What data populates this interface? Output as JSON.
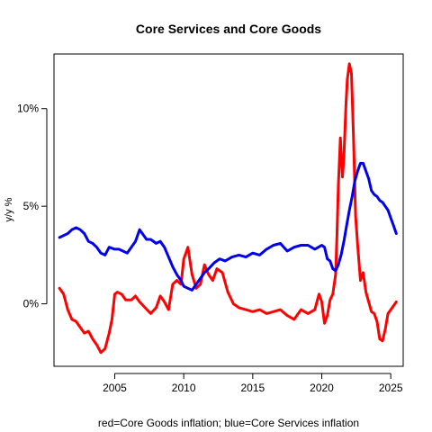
{
  "chart_data": {
    "type": "line",
    "title": "Core Services and Core Goods",
    "ylabel": "y/y %",
    "xlabel": "red=Core Goods inflation; blue=Core Services inflation",
    "xlim": [
      2000.6,
      2025.9
    ],
    "ylim": [
      -3.2,
      12.8
    ],
    "x_ticks": [
      2005,
      2010,
      2015,
      2020,
      2025
    ],
    "x_tick_labels": [
      "2005",
      "2010",
      "2015",
      "2020",
      "2025"
    ],
    "y_ticks": [
      0,
      5,
      10
    ],
    "y_tick_labels": [
      "0%",
      "5%",
      "10%"
    ],
    "grid": false,
    "legend": "none",
    "series": [
      {
        "color": "#ff0000",
        "x": [
          2001.0,
          2001.3,
          2001.6,
          2001.9,
          2002.2,
          2002.5,
          2002.8,
          2003.1,
          2003.4,
          2003.7,
          2004.0,
          2004.3,
          2004.6,
          2004.8,
          2005.0,
          2005.2,
          2005.5,
          2005.8,
          2006.2,
          2006.5,
          2006.8,
          2007.2,
          2007.6,
          2008.0,
          2008.3,
          2008.6,
          2008.9,
          2009.2,
          2009.5,
          2009.8,
          2010.0,
          2010.3,
          2010.6,
          2010.9,
          2011.2,
          2011.5,
          2011.8,
          2012.1,
          2012.4,
          2012.8,
          2013.2,
          2013.6,
          2014.0,
          2014.5,
          2015.0,
          2015.5,
          2016.0,
          2016.5,
          2017.0,
          2017.5,
          2018.0,
          2018.5,
          2019.0,
          2019.5,
          2019.8,
          2020.0,
          2020.2,
          2020.4,
          2020.6,
          2020.8,
          2021.0,
          2021.1,
          2021.2,
          2021.35,
          2021.5,
          2021.6,
          2021.75,
          2021.85,
          2022.0,
          2022.15,
          2022.3,
          2022.45,
          2022.6,
          2022.8,
          2023.0,
          2023.2,
          2023.4,
          2023.6,
          2023.8,
          2024.0,
          2024.2,
          2024.4,
          2024.6,
          2024.8,
          2025.0,
          2025.2,
          2025.4
        ],
        "y": [
          0.8,
          0.5,
          -0.3,
          -0.8,
          -0.9,
          -1.2,
          -1.5,
          -1.4,
          -1.8,
          -2.1,
          -2.5,
          -2.3,
          -1.5,
          -0.8,
          0.5,
          0.6,
          0.5,
          0.2,
          0.2,
          0.4,
          0.1,
          -0.2,
          -0.5,
          -0.2,
          0.4,
          0.1,
          -0.3,
          1.0,
          1.2,
          1.0,
          2.3,
          2.9,
          1.5,
          0.8,
          1.0,
          2.0,
          1.5,
          1.2,
          1.8,
          1.6,
          0.6,
          0.0,
          -0.2,
          -0.3,
          -0.4,
          -0.3,
          -0.5,
          -0.4,
          -0.3,
          -0.6,
          -0.8,
          -0.3,
          -0.5,
          -0.3,
          0.5,
          0.1,
          -1.0,
          -0.6,
          0.2,
          0.5,
          1.5,
          3.5,
          6.0,
          8.5,
          6.5,
          7.5,
          10.2,
          11.5,
          12.3,
          11.8,
          8.5,
          4.5,
          3.0,
          1.2,
          1.6,
          0.6,
          0.1,
          -0.4,
          -0.5,
          -0.9,
          -1.8,
          -1.9,
          -1.3,
          -0.5,
          -0.3,
          -0.1,
          0.1
        ]
      },
      {
        "color": "#0000ee",
        "x": [
          2001.0,
          2001.3,
          2001.6,
          2001.9,
          2002.2,
          2002.5,
          2002.8,
          2003.1,
          2003.4,
          2003.7,
          2004.0,
          2004.3,
          2004.6,
          2005.0,
          2005.3,
          2005.6,
          2005.9,
          2006.2,
          2006.5,
          2006.8,
          2007.0,
          2007.3,
          2007.6,
          2008.0,
          2008.3,
          2008.6,
          2008.9,
          2009.2,
          2009.5,
          2009.8,
          2010.0,
          2010.3,
          2010.6,
          2010.9,
          2011.2,
          2011.5,
          2011.8,
          2012.2,
          2012.6,
          2013.0,
          2013.5,
          2014.0,
          2014.5,
          2015.0,
          2015.5,
          2016.0,
          2016.5,
          2017.0,
          2017.5,
          2018.0,
          2018.5,
          2019.0,
          2019.5,
          2020.0,
          2020.2,
          2020.4,
          2020.6,
          2020.8,
          2021.0,
          2021.2,
          2021.4,
          2021.6,
          2021.8,
          2022.0,
          2022.2,
          2022.4,
          2022.6,
          2022.8,
          2023.0,
          2023.2,
          2023.4,
          2023.6,
          2023.8,
          2024.0,
          2024.2,
          2024.4,
          2024.6,
          2024.8,
          2025.0,
          2025.2,
          2025.4
        ],
        "y": [
          3.4,
          3.5,
          3.6,
          3.8,
          3.9,
          3.8,
          3.6,
          3.2,
          3.1,
          2.9,
          2.6,
          2.5,
          2.9,
          2.8,
          2.8,
          2.7,
          2.6,
          2.9,
          3.2,
          3.8,
          3.6,
          3.3,
          3.3,
          3.1,
          3.2,
          2.9,
          2.4,
          1.9,
          1.5,
          1.2,
          0.9,
          0.8,
          0.7,
          1.0,
          1.3,
          1.6,
          1.8,
          2.1,
          2.3,
          2.2,
          2.4,
          2.5,
          2.4,
          2.6,
          2.5,
          2.8,
          3.0,
          3.1,
          2.7,
          2.9,
          3.0,
          3.0,
          2.8,
          3.0,
          2.9,
          2.3,
          2.2,
          1.8,
          1.7,
          2.0,
          2.5,
          3.2,
          4.0,
          4.8,
          5.5,
          6.3,
          6.8,
          7.2,
          7.2,
          6.8,
          6.4,
          5.8,
          5.6,
          5.5,
          5.3,
          5.2,
          5.0,
          4.8,
          4.4,
          4.0,
          3.6
        ]
      }
    ]
  }
}
